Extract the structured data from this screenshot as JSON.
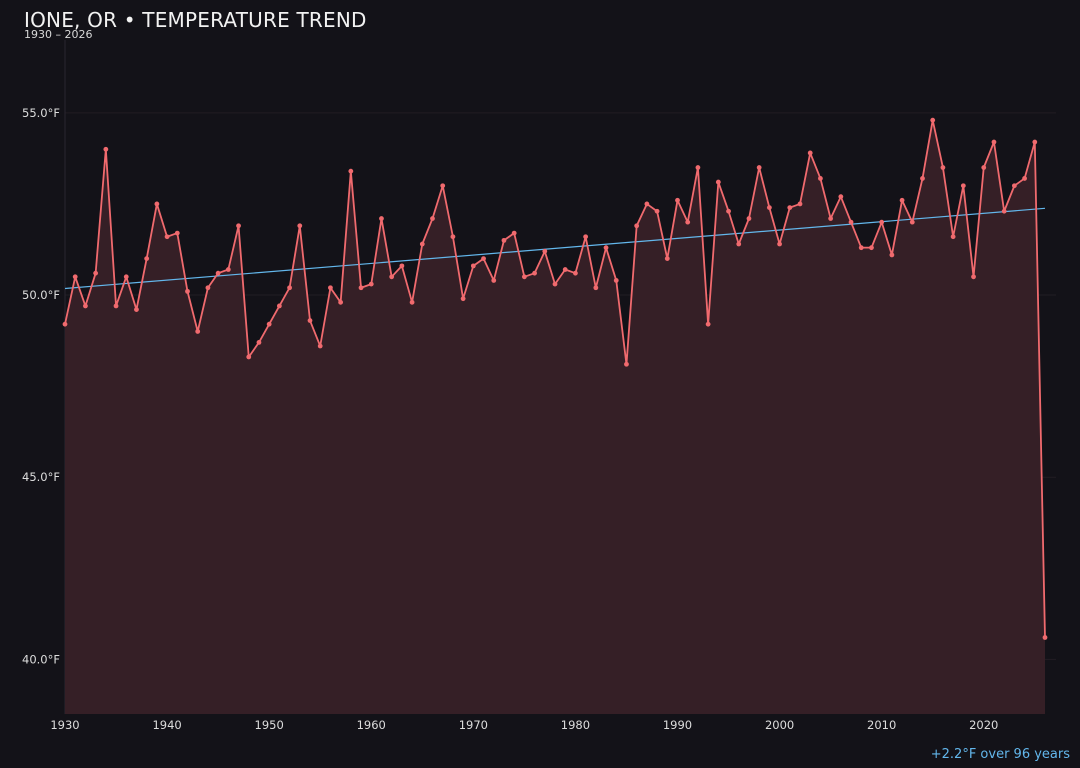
{
  "chart_data": {
    "type": "area",
    "title": "IONE, OR • TEMPERATURE TREND",
    "subtitle": "1930 – 2026",
    "annotation": "+2.2°F over 96 years",
    "xlabel": "",
    "ylabel": "",
    "xlim": [
      1930,
      2026
    ],
    "ylim": [
      38.5,
      57.0
    ],
    "grid": true,
    "y_ticks": [
      40.0,
      45.0,
      50.0,
      55.0
    ],
    "y_tick_labels": [
      "40.0°F",
      "45.0°F",
      "50.0°F",
      "55.0°F"
    ],
    "x_ticks": [
      1930,
      1940,
      1950,
      1960,
      1970,
      1980,
      1990,
      2000,
      2010,
      2020
    ],
    "x_tick_labels": [
      "1930",
      "1940",
      "1950",
      "1960",
      "1970",
      "1980",
      "1990",
      "2000",
      "2010",
      "2020"
    ],
    "colors": {
      "background": "#131218",
      "line": "#f06a6e",
      "fill": "#351f26",
      "trend": "#63b7ec",
      "grid": "#221d23"
    },
    "series": [
      {
        "x": [
          1930,
          1931,
          1932,
          1933,
          1934,
          1935,
          1936,
          1937,
          1938,
          1939,
          1940,
          1941,
          1942,
          1943,
          1944,
          1945,
          1946,
          1947,
          1948,
          1949,
          1950,
          1951,
          1952,
          1953,
          1954,
          1955,
          1956,
          1957,
          1958,
          1959,
          1960,
          1961,
          1962,
          1963,
          1964,
          1965,
          1966,
          1967,
          1968,
          1969,
          1970,
          1971,
          1972,
          1973,
          1974,
          1975,
          1976,
          1977,
          1978,
          1979,
          1980,
          1981,
          1982,
          1983,
          1984,
          1985,
          1986,
          1987,
          1988,
          1989,
          1990,
          1991,
          1992,
          1993,
          1994,
          1995,
          1996,
          1997,
          1998,
          1999,
          2000,
          2001,
          2002,
          2003,
          2004,
          2005,
          2006,
          2007,
          2008,
          2009,
          2010,
          2011,
          2012,
          2013,
          2014,
          2015,
          2016,
          2017,
          2018,
          2019,
          2020,
          2021,
          2022,
          2023,
          2024,
          2025,
          2026
        ],
        "values": [
          49.2,
          50.5,
          49.7,
          50.6,
          54.0,
          49.7,
          50.5,
          49.6,
          51.0,
          52.5,
          51.6,
          51.7,
          50.1,
          49.0,
          50.2,
          50.6,
          50.7,
          51.9,
          48.3,
          48.7,
          49.2,
          49.7,
          50.2,
          51.9,
          49.3,
          48.6,
          50.2,
          49.8,
          53.4,
          50.2,
          50.3,
          52.1,
          50.5,
          50.8,
          49.8,
          51.4,
          52.1,
          53.0,
          51.6,
          49.9,
          50.8,
          51.0,
          50.4,
          51.5,
          51.7,
          50.5,
          50.6,
          51.2,
          50.3,
          50.7,
          50.6,
          51.6,
          50.2,
          51.3,
          50.4,
          48.1,
          51.9,
          52.5,
          52.3,
          51.0,
          52.6,
          52.0,
          53.5,
          49.2,
          53.1,
          52.3,
          51.4,
          52.1,
          53.5,
          52.4,
          51.4,
          52.4,
          52.5,
          53.9,
          53.2,
          52.1,
          52.7,
          52.0,
          51.3,
          51.3,
          52.0,
          51.1,
          52.6,
          52.0,
          53.2,
          54.8,
          53.5,
          51.6,
          53.0,
          50.5,
          53.5,
          54.2,
          52.3,
          53.0,
          53.2,
          54.2,
          40.6
        ]
      }
    ],
    "trend": {
      "x": [
        1930,
        2026
      ],
      "values": [
        50.18,
        52.38
      ]
    }
  }
}
